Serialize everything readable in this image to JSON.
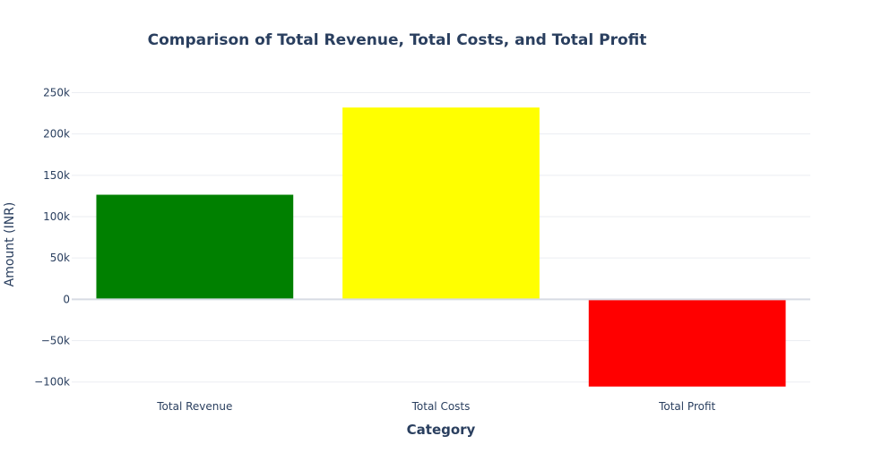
{
  "chart_data": {
    "type": "bar",
    "title": "Comparison of Total Revenue, Total Costs, and Total Profit",
    "xlabel": "Category",
    "ylabel": "Amount (INR)",
    "categories": [
      "Total Revenue",
      "Total Costs",
      "Total Profit"
    ],
    "values": [
      126500,
      232000,
      -105500
    ],
    "colors": [
      "#008000",
      "#ffff00",
      "#ff0000"
    ],
    "ylim": [
      -109000,
      270000
    ],
    "y_ticks": [
      {
        "value": -100000,
        "label": "−100k"
      },
      {
        "value": -50000,
        "label": "−50k"
      },
      {
        "value": 0,
        "label": "0"
      },
      {
        "value": 50000,
        "label": "50k"
      },
      {
        "value": 100000,
        "label": "100k"
      },
      {
        "value": 150000,
        "label": "150k"
      },
      {
        "value": 200000,
        "label": "200k"
      },
      {
        "value": 250000,
        "label": "250k"
      }
    ],
    "grid": true,
    "legend": "none"
  }
}
